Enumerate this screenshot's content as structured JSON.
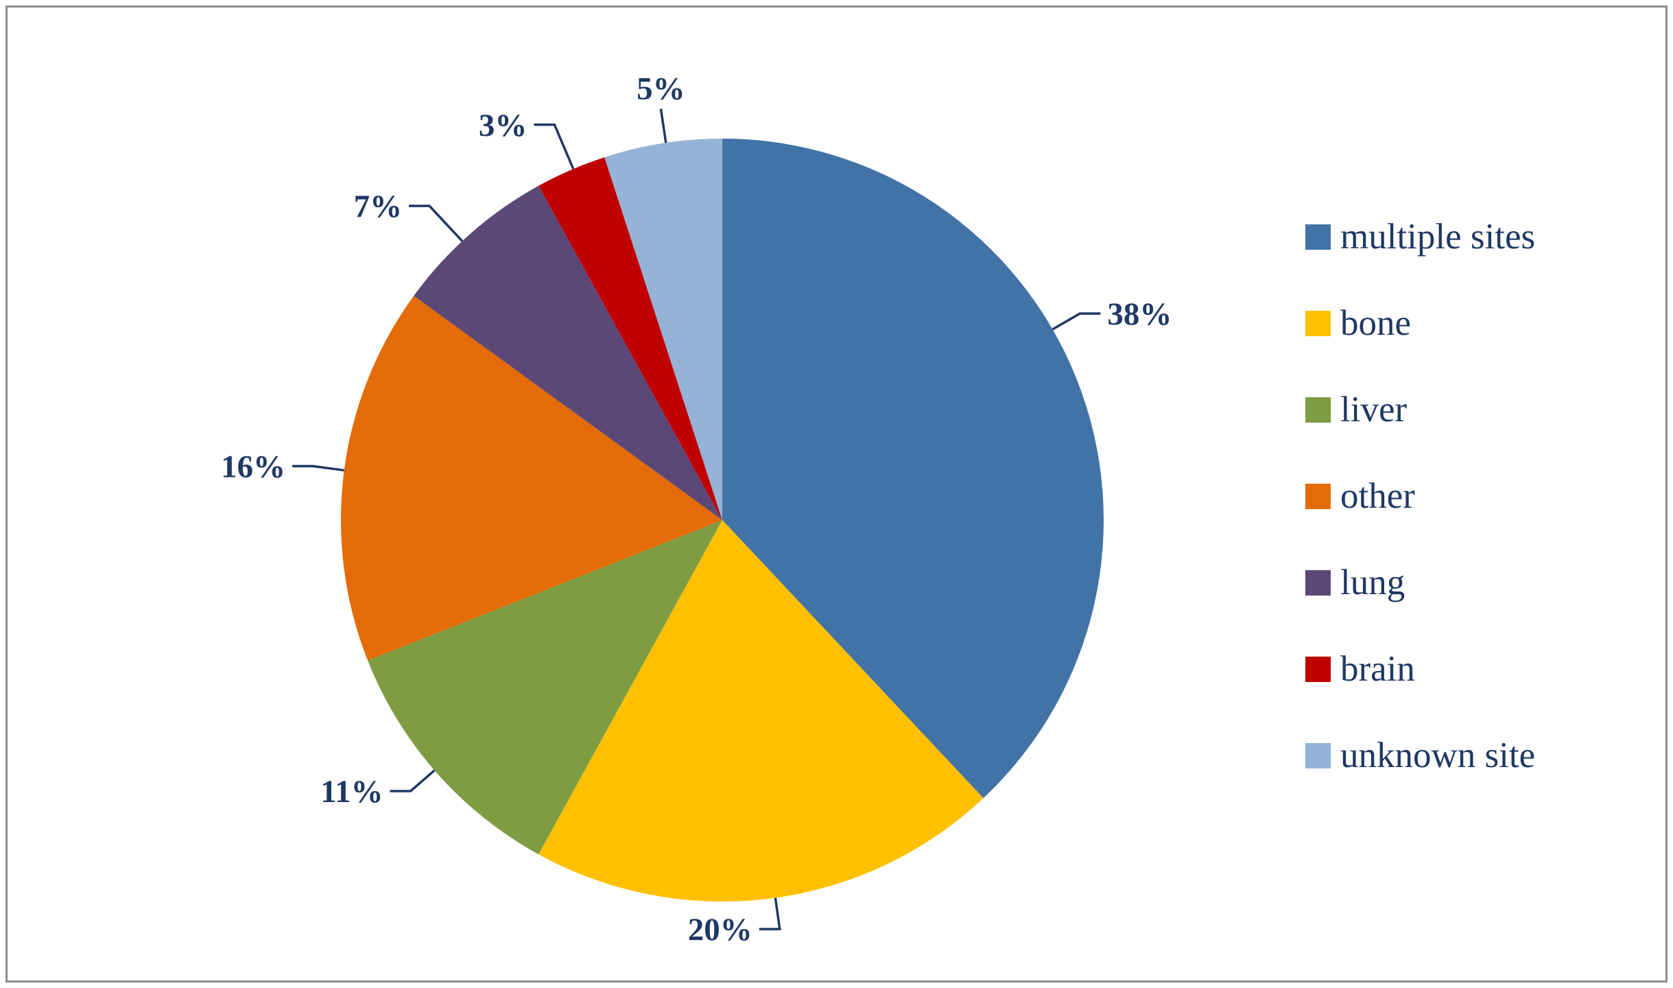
{
  "chart_data": {
    "type": "pie",
    "title": "",
    "legend_position": "right",
    "direction": "clockwise",
    "start_angle_deg": 0,
    "label_color": "#1F3864",
    "series": [
      {
        "name": "multiple sites",
        "value": 38,
        "percent_label": "38%",
        "color": "#4273A6"
      },
      {
        "name": "bone",
        "value": 20,
        "percent_label": "20%",
        "color": "#FFC000"
      },
      {
        "name": "liver",
        "value": 11,
        "percent_label": "11%",
        "color": "#7E9D42"
      },
      {
        "name": "other",
        "value": 16,
        "percent_label": "16%",
        "color": "#E36C09"
      },
      {
        "name": "lung",
        "value": 7,
        "percent_label": "7%",
        "color": "#5C4876"
      },
      {
        "name": "brain",
        "value": 3,
        "percent_label": "3%",
        "color": "#C00000"
      },
      {
        "name": "unknown site",
        "value": 5,
        "percent_label": "5%",
        "color": "#95B3D7"
      }
    ]
  }
}
